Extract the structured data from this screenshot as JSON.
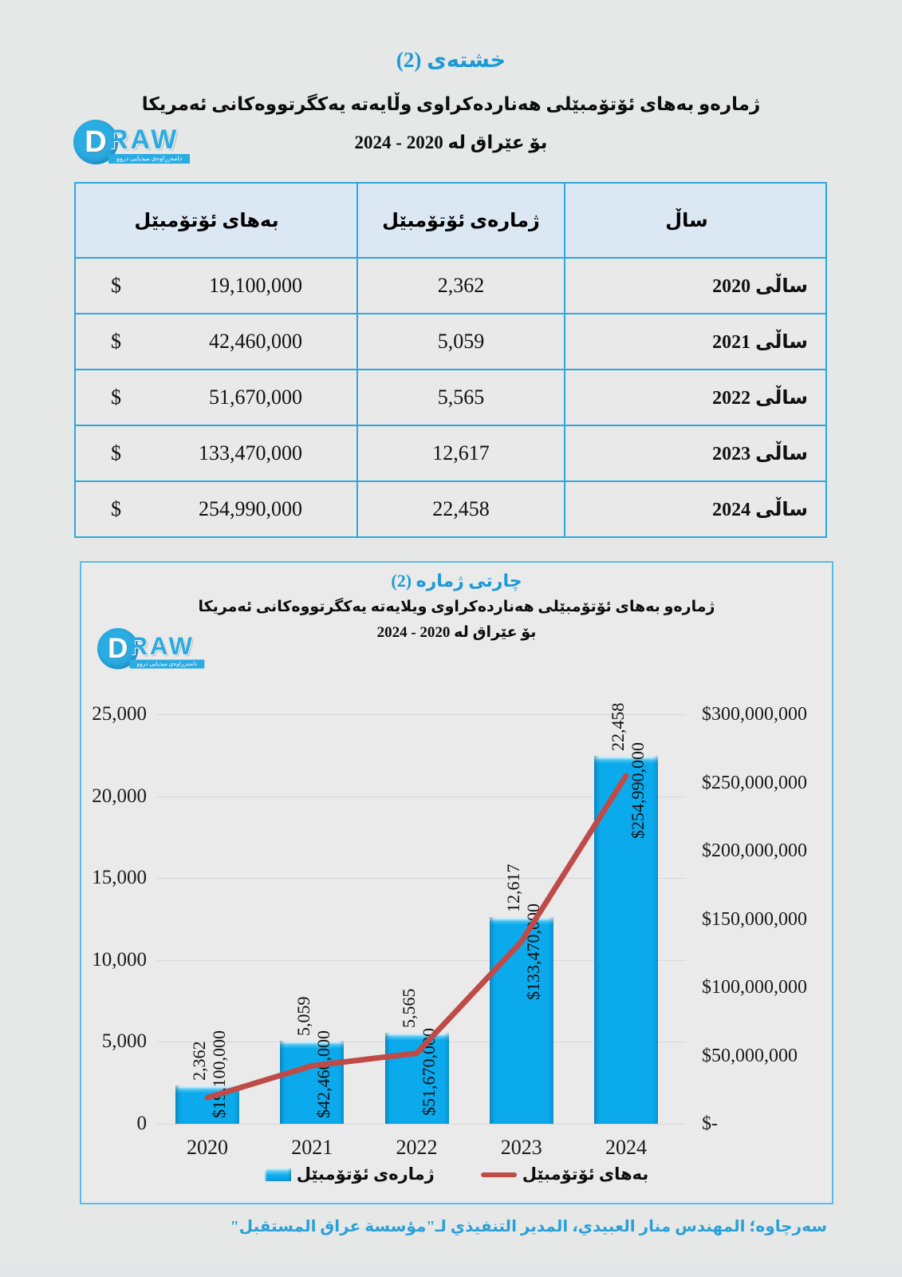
{
  "page": {
    "background": "#e6e7e7",
    "accent_blue": "#1b9ad6",
    "source_note": "سەرچاوە؛ المهندس منار العبيدي، المدير التنفيذي لـ\"مؤسسة عراق المستقبل\""
  },
  "logo": {
    "d": "D",
    "word": "RAW",
    "tagline": "دامەزراوەی میدیایی دروو"
  },
  "table_section": {
    "title": "خشتەی (2)",
    "subtitle_line1": "ژمارەو بەهای ئۆتۆمبێلی هەناردەکراوی وڵایەتە یەکگرتووەکانی ئەمریکا",
    "subtitle_line2": "بۆ عێراق لە 2020 - 2024"
  },
  "table": {
    "headers": {
      "value": "بەهای ئۆتۆمبێل",
      "count": "ژمارەی ئۆتۆمبێل",
      "year": "ساڵ"
    },
    "rows": [
      {
        "currency": "$",
        "value": "19,100,000",
        "count": "2,362",
        "year": "ساڵی 2020"
      },
      {
        "currency": "$",
        "value": "42,460,000",
        "count": "5,059",
        "year": "ساڵی 2021"
      },
      {
        "currency": "$",
        "value": "51,670,000",
        "count": "5,565",
        "year": "ساڵی 2022"
      },
      {
        "currency": "$",
        "value": "133,470,000",
        "count": "12,617",
        "year": "ساڵی 2023"
      },
      {
        "currency": "$",
        "value": "254,990,000",
        "count": "22,458",
        "year": "ساڵی 2024"
      }
    ]
  },
  "chart_section": {
    "title": "چارتی ژماره (2)",
    "subtitle_line1": "ژمارەو بەهای ئۆتۆمبێلی هەناردەکراوی ویلایەتە یەکگرتووەکانی ئەمریکا",
    "subtitle_line2": "بۆ عێراق لە 2020 - 2024"
  },
  "chart_data": {
    "type": "bar",
    "title": "چارتی ژماره (2)",
    "categories": [
      "2020",
      "2021",
      "2022",
      "2023",
      "2024"
    ],
    "series": [
      {
        "name": "ژمارەی ئۆتۆمبێل",
        "type": "bar",
        "axis": "left",
        "color": "#0aaaed",
        "values": [
          2362,
          5059,
          5565,
          12617,
          22458
        ],
        "labels": [
          "2,362",
          "5,059",
          "5,565",
          "12,617",
          "22,458"
        ]
      },
      {
        "name": "بەهای ئۆتۆمبێل",
        "type": "line",
        "axis": "right",
        "color": "#be4b48",
        "values": [
          19100000,
          42460000,
          51670000,
          133470000,
          254990000
        ],
        "labels": [
          "$19,100,000",
          "$42,460,000",
          "$51,670,000",
          "$133,470,000",
          "$254,990,000"
        ]
      }
    ],
    "left_axis": {
      "min": 0,
      "max": 25000,
      "step": 5000,
      "ticks": [
        "0",
        "5,000",
        "10,000",
        "15,000",
        "20,000",
        "25,000"
      ]
    },
    "right_axis": {
      "min": 0,
      "max": 300000000,
      "step": 50000000,
      "ticks": [
        "$-",
        "$50,000,000",
        "$100,000,000",
        "$150,000,000",
        "$200,000,000",
        "$250,000,000",
        "$300,000,000"
      ]
    },
    "grid": true,
    "legend_position": "bottom"
  }
}
